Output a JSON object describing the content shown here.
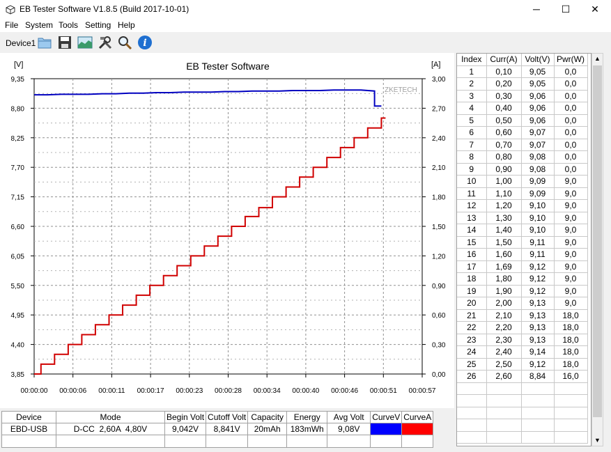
{
  "window": {
    "title": "EB Tester Software V1.8.5 (Build 2017-10-01)",
    "minimize": "─",
    "maximize": "☐",
    "close": "✕"
  },
  "menu": [
    "File",
    "System",
    "Tools",
    "Setting",
    "Help"
  ],
  "toolbar": {
    "device_label": "Device1",
    "buttons": [
      "folder-icon",
      "save-icon",
      "chart-image-icon",
      "tools-icon",
      "search-icon",
      "info-icon"
    ]
  },
  "chart_data": {
    "type": "line",
    "title": "EB Tester Software",
    "watermark": "ZKETECH",
    "y_left_unit": "[V]",
    "y_right_unit": "[A]",
    "y_left_ticks": [
      "9,35",
      "8,80",
      "8,25",
      "7,70",
      "7,15",
      "6,60",
      "6,05",
      "5,50",
      "4,95",
      "4,40",
      "3,85"
    ],
    "y_right_ticks": [
      "3,00",
      "2,70",
      "2,40",
      "2,10",
      "1,80",
      "1,50",
      "1,20",
      "0,90",
      "0,60",
      "0,30",
      "0,00"
    ],
    "x_ticks": [
      "00:00:00",
      "00:00:06",
      "00:00:11",
      "00:00:17",
      "00:00:23",
      "00:00:28",
      "00:00:34",
      "00:00:40",
      "00:00:46",
      "00:00:51",
      "00:00:57"
    ],
    "ylim_left": [
      3.85,
      9.35
    ],
    "ylim_right": [
      0,
      3.0
    ],
    "xlim_seconds": [
      0,
      57
    ],
    "series": [
      {
        "axis": "left",
        "color": "#0000c0",
        "x": [
          0,
          2,
          4,
          6,
          8,
          10,
          12,
          14,
          16,
          18,
          20,
          22,
          24,
          26,
          28,
          30,
          32,
          34,
          36,
          38,
          40,
          42,
          44,
          46,
          48,
          50,
          50,
          51
        ],
        "values": [
          9.05,
          9.05,
          9.06,
          9.06,
          9.06,
          9.07,
          9.07,
          9.08,
          9.08,
          9.09,
          9.09,
          9.1,
          9.1,
          9.1,
          9.11,
          9.11,
          9.12,
          9.12,
          9.12,
          9.13,
          9.13,
          9.13,
          9.14,
          9.14,
          9.14,
          9.12,
          8.84,
          8.84
        ]
      },
      {
        "axis": "right",
        "color": "#d00000",
        "step": true,
        "x": [
          0,
          1,
          3,
          5,
          7,
          9,
          11,
          13,
          15,
          17,
          19,
          21,
          23,
          25,
          27,
          29,
          31,
          33,
          35,
          37,
          39,
          41,
          43,
          45,
          47,
          49,
          51
        ],
        "values": [
          0.0,
          0.1,
          0.2,
          0.3,
          0.4,
          0.5,
          0.6,
          0.7,
          0.8,
          0.9,
          1.0,
          1.1,
          1.2,
          1.3,
          1.4,
          1.5,
          1.6,
          1.69,
          1.8,
          1.9,
          2.0,
          2.1,
          2.2,
          2.3,
          2.4,
          2.5,
          2.6
        ]
      }
    ],
    "grid": true
  },
  "data_grid": {
    "headers": [
      "Index",
      "Curr(A)",
      "Volt(V)",
      "Pwr(W)"
    ],
    "rows": [
      [
        "1",
        "0,10",
        "9,05",
        "0,0"
      ],
      [
        "2",
        "0,20",
        "9,05",
        "0,0"
      ],
      [
        "3",
        "0,30",
        "9,06",
        "0,0"
      ],
      [
        "4",
        "0,40",
        "9,06",
        "0,0"
      ],
      [
        "5",
        "0,50",
        "9,06",
        "0,0"
      ],
      [
        "6",
        "0,60",
        "9,07",
        "0,0"
      ],
      [
        "7",
        "0,70",
        "9,07",
        "0,0"
      ],
      [
        "8",
        "0,80",
        "9,08",
        "0,0"
      ],
      [
        "9",
        "0,90",
        "9,08",
        "0,0"
      ],
      [
        "10",
        "1,00",
        "9,09",
        "9,0"
      ],
      [
        "11",
        "1,10",
        "9,09",
        "9,0"
      ],
      [
        "12",
        "1,20",
        "9,10",
        "9,0"
      ],
      [
        "13",
        "1,30",
        "9,10",
        "9,0"
      ],
      [
        "14",
        "1,40",
        "9,10",
        "9,0"
      ],
      [
        "15",
        "1,50",
        "9,11",
        "9,0"
      ],
      [
        "16",
        "1,60",
        "9,11",
        "9,0"
      ],
      [
        "17",
        "1,69",
        "9,12",
        "9,0"
      ],
      [
        "18",
        "1,80",
        "9,12",
        "9,0"
      ],
      [
        "19",
        "1,90",
        "9,12",
        "9,0"
      ],
      [
        "20",
        "2,00",
        "9,13",
        "9,0"
      ],
      [
        "21",
        "2,10",
        "9,13",
        "18,0"
      ],
      [
        "22",
        "2,20",
        "9,13",
        "18,0"
      ],
      [
        "23",
        "2,30",
        "9,13",
        "18,0"
      ],
      [
        "24",
        "2,40",
        "9,14",
        "18,0"
      ],
      [
        "25",
        "2,50",
        "9,12",
        "18,0"
      ],
      [
        "26",
        "2,60",
        "8,84",
        "16,0"
      ]
    ],
    "empty_rows": 5
  },
  "info_table": {
    "headers": [
      "Device",
      "Mode",
      "Begin Volt",
      "Cutoff Volt",
      "Capacity",
      "Energy",
      "Avg Volt",
      "CurveV",
      "CurveA"
    ],
    "values": [
      "EBD-USB",
      "D-CC  2,60A  4,80V",
      "9,042V",
      "8,841V",
      "20mAh",
      "183mWh",
      "9,08V",
      "",
      ""
    ],
    "curve_colors": [
      "#0000ff",
      "#ff0000"
    ]
  }
}
